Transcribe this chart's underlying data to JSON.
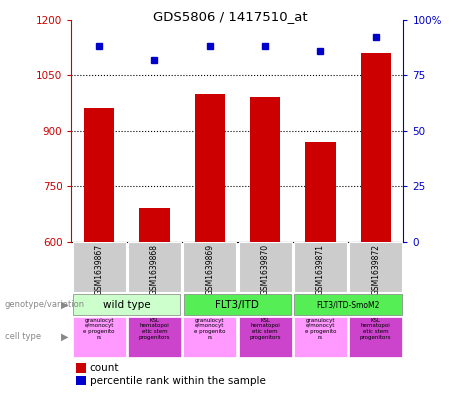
{
  "title": "GDS5806 / 1417510_at",
  "samples": [
    "GSM1639867",
    "GSM1639868",
    "GSM1639869",
    "GSM1639870",
    "GSM1639871",
    "GSM1639872"
  ],
  "counts": [
    960,
    690,
    1000,
    990,
    870,
    1110
  ],
  "percentiles": [
    88,
    82,
    88,
    88,
    86,
    92
  ],
  "ylim_left": [
    600,
    1200
  ],
  "ylim_right": [
    0,
    100
  ],
  "yticks_left": [
    600,
    750,
    900,
    1050,
    1200
  ],
  "yticks_right": [
    0,
    25,
    50,
    75,
    100
  ],
  "bar_color": "#cc0000",
  "dot_color": "#0000cc",
  "legend_count_label": "count",
  "legend_pct_label": "percentile rank within the sample",
  "bg_color": "#ffffff",
  "sample_box_color": "#cccccc",
  "geno_wild_color": "#ccffcc",
  "geno_flt3_color": "#55ee55",
  "cell_light_color": "#ff99ff",
  "cell_dark_color": "#cc44cc"
}
